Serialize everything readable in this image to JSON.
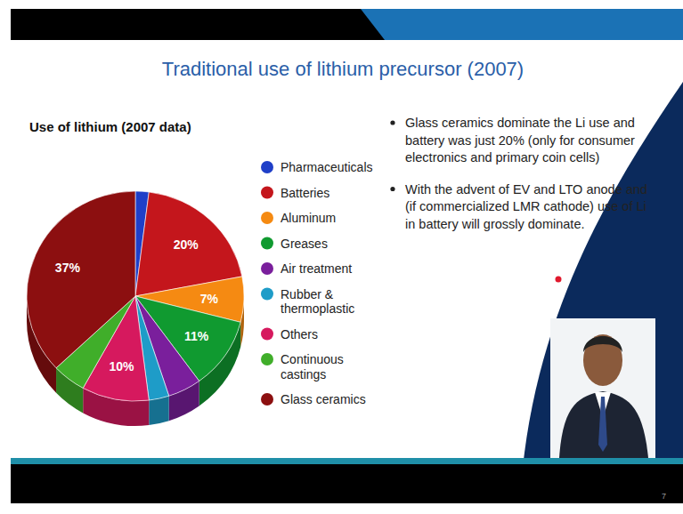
{
  "chart_data": {
    "type": "pie",
    "title": "Traditional use of lithium precursor (2007)",
    "subtitle": "Use of lithium (2007 data)",
    "categories": [
      "Pharmaceuticals",
      "Batteries",
      "Aluminum",
      "Greases",
      "Air treatment",
      "Rubber & thermoplastic",
      "Others",
      "Continuous castings",
      "Glass ceramics"
    ],
    "values": [
      2,
      20,
      7,
      11,
      5,
      3,
      10,
      5,
      37
    ],
    "value_labels": [
      null,
      "20%",
      "7%",
      "11%",
      null,
      null,
      "10%",
      null,
      "37%"
    ],
    "colors": [
      "#1f3fc8",
      "#c4161c",
      "#f58a12",
      "#109a30",
      "#7a1f9c",
      "#1e9cc8",
      "#d6195e",
      "#40ae2a",
      "#8c0f10"
    ],
    "data_labels": true,
    "legend": "right"
  },
  "bullets": [
    "Glass ceramics dominate the Li use and battery was just 20% (only for consumer electronics and primary coin cells)",
    "With the advent of EV and LTO anode and (if commercialized LMR cathode) use of Li in battery will grossly dominate."
  ],
  "page_number": 7
}
